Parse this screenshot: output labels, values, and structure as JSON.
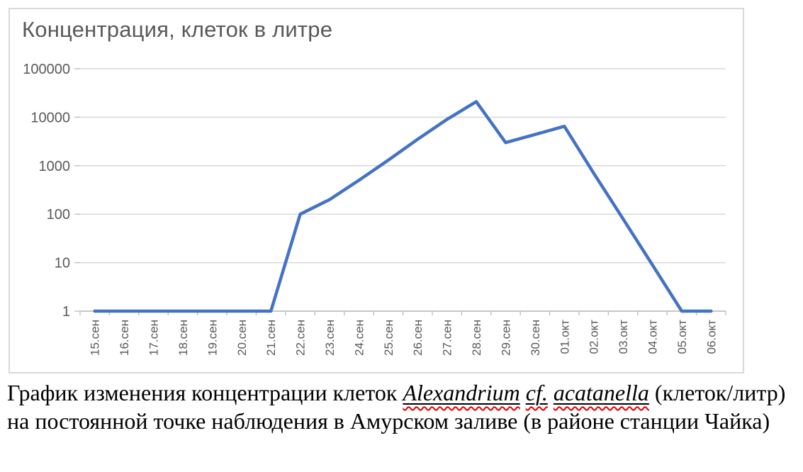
{
  "chart_data": {
    "type": "line",
    "title": "Концентрация, клеток в литре",
    "categories": [
      "15.сен",
      "16.сен",
      "17.сен",
      "18.сен",
      "19.сен",
      "20.сен",
      "21.сен",
      "22.сен",
      "23.сен",
      "24.сен",
      "25.сен",
      "26.сен",
      "27.сен",
      "28.сен",
      "29.сен",
      "30.сен",
      "01.окт",
      "02.окт",
      "03.окт",
      "04.окт",
      "05.окт",
      "06.окт"
    ],
    "values": [
      1,
      1,
      1,
      1,
      1,
      1,
      1,
      100,
      200,
      500,
      1300,
      3500,
      9000,
      21000,
      3000,
      4400,
      6500,
      700,
      80,
      9,
      1,
      1
    ],
    "y_ticks": [
      1,
      10,
      100,
      1000,
      10000,
      100000
    ],
    "y_tick_labels": [
      "1",
      "10",
      "100",
      "1000",
      "10000",
      "100000"
    ],
    "y_scale": "log",
    "ylim": [
      1,
      100000
    ],
    "xlabel": "",
    "ylabel": "",
    "grid": true,
    "legend": false
  },
  "colors": {
    "line": "#4472C4",
    "gridline": "#D9D9D9",
    "axis": "#BFBFBF",
    "axis_text": "#595959",
    "title_text": "#595959",
    "chart_border": "#D9D9D9",
    "caption_text": "#000000",
    "squiggle": "#E00000"
  },
  "caption": {
    "text_before": "График изменения концентрации клеток ",
    "species_words": [
      "Alexandrium",
      "cf.",
      "acatanella"
    ],
    "text_after": " (клеток/литр) на постоянной точке наблюдения в Амурском заливе (в районе станции Чайка)"
  }
}
